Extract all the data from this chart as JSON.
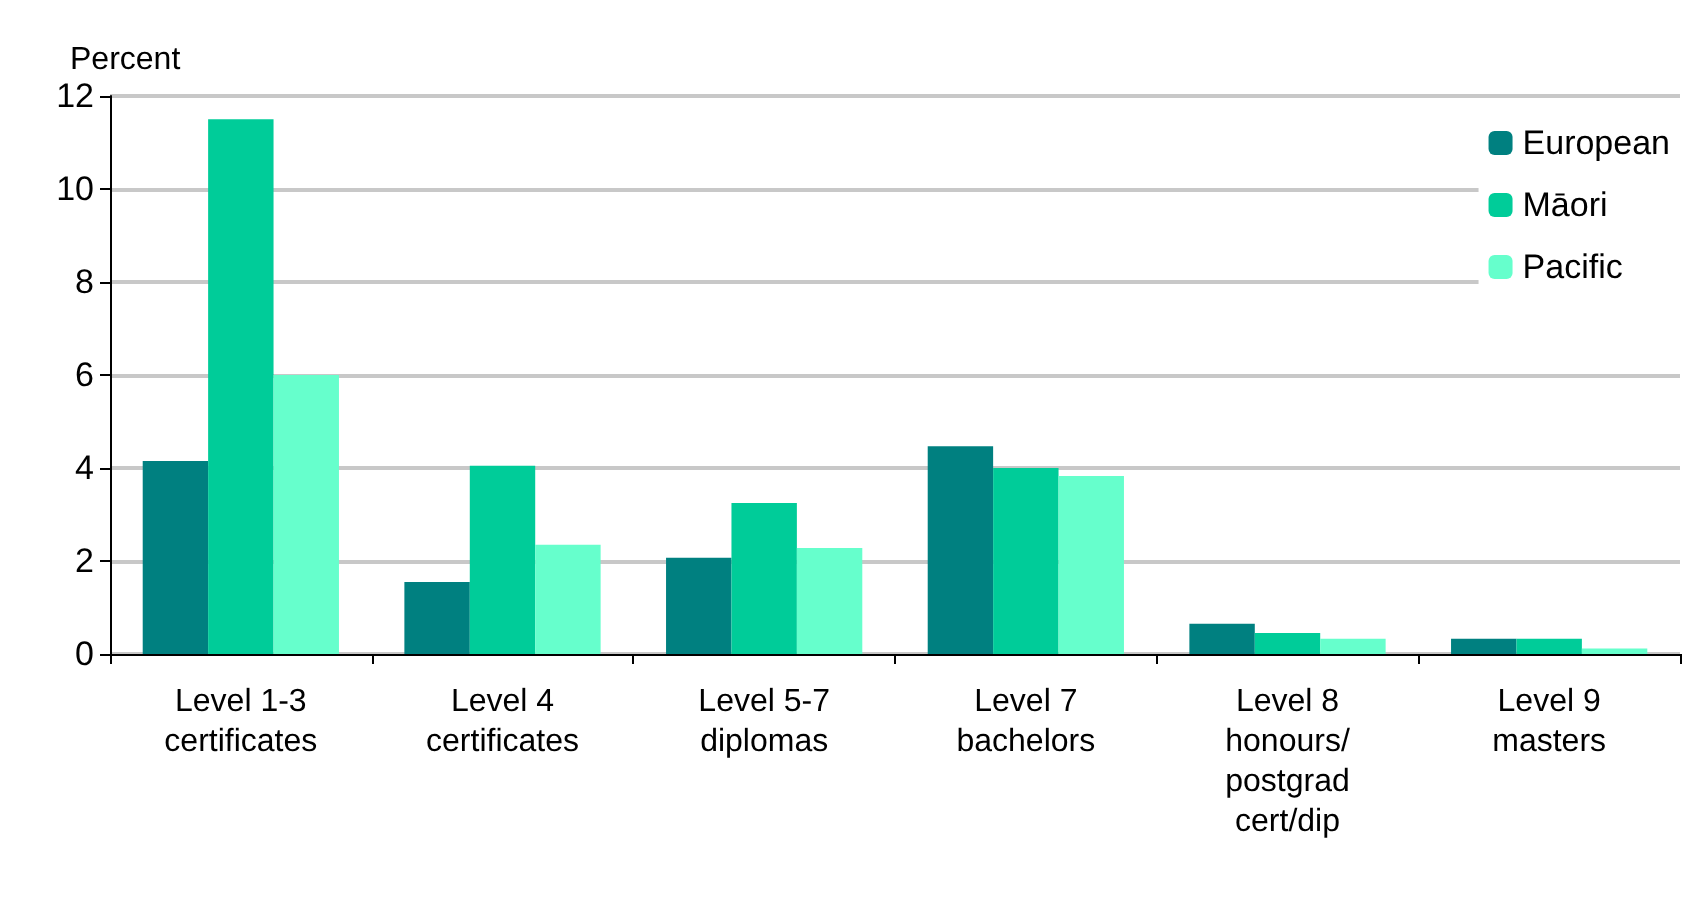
{
  "chart_data": {
    "type": "bar",
    "ylabel": "Percent",
    "categories": [
      "Level 1-3\ncertificates",
      "Level 4\ncertificates",
      "Level 5-7\ndiplomas",
      "Level 7\nbachelors",
      "Level 8\nhonours/\npostgrad\ncert/dip",
      "Level 9\nmasters"
    ],
    "series": [
      {
        "name": "European",
        "color": "#008080",
        "values": [
          4.15,
          1.55,
          2.07,
          4.47,
          0.65,
          0.33
        ]
      },
      {
        "name": "Māori",
        "color": "#00cc99",
        "values": [
          11.5,
          4.05,
          3.25,
          4.0,
          0.45,
          0.33
        ]
      },
      {
        "name": "Pacific",
        "color": "#66ffcc",
        "values": [
          6.0,
          2.35,
          2.28,
          3.83,
          0.33,
          0.12
        ]
      }
    ],
    "ylim": [
      0,
      12
    ],
    "yticks": [
      0,
      2,
      4,
      6,
      8,
      10,
      12
    ],
    "grid": "y",
    "legend": "top right"
  }
}
